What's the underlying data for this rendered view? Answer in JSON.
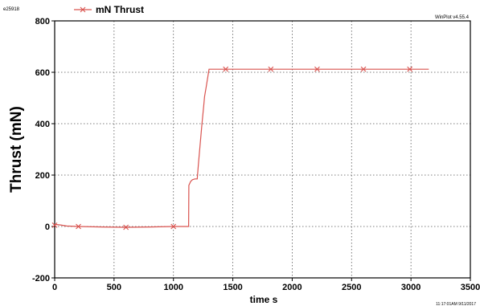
{
  "header": {
    "file_id": "e25918",
    "software": "WinPlot v4.55.4",
    "timestamp": "11:17:01AM 9/11/2017"
  },
  "chart_data": {
    "type": "line",
    "title": "",
    "xlabel": "time  s",
    "ylabel": "Thrust (mN)",
    "xlim": [
      0,
      3500
    ],
    "ylim": [
      -200,
      800
    ],
    "x_ticks": [
      0,
      500,
      1000,
      1500,
      2000,
      2500,
      3000,
      3500
    ],
    "y_ticks": [
      -200,
      0,
      200,
      400,
      600,
      800
    ],
    "grid": true,
    "legend": {
      "position": "top-left",
      "entries": [
        "mN  Thrust"
      ]
    },
    "series": [
      {
        "name": "mN  Thrust",
        "color": "#d9534f",
        "marker": "x",
        "x": [
          0,
          50,
          100,
          200,
          400,
          600,
          800,
          1000,
          1128,
          1130,
          1145,
          1160,
          1180,
          1200,
          1210,
          1240,
          1255,
          1262,
          1275,
          1300,
          1400,
          1600,
          1800,
          2000,
          2200,
          2400,
          2600,
          2800,
          3000,
          3150
        ],
        "y": [
          8,
          6,
          2,
          0,
          -2,
          -3,
          -2,
          0,
          0,
          160,
          175,
          182,
          185,
          185,
          240,
          400,
          470,
          505,
          540,
          612,
          612,
          612,
          612,
          612,
          612,
          612,
          612,
          612,
          612,
          612
        ]
      }
    ],
    "marker_points": {
      "x": [
        0,
        200,
        600,
        1000,
        1440,
        1820,
        2210,
        2600,
        2990
      ],
      "y": [
        5,
        0,
        -3,
        0,
        612,
        612,
        612,
        612,
        612
      ]
    }
  }
}
